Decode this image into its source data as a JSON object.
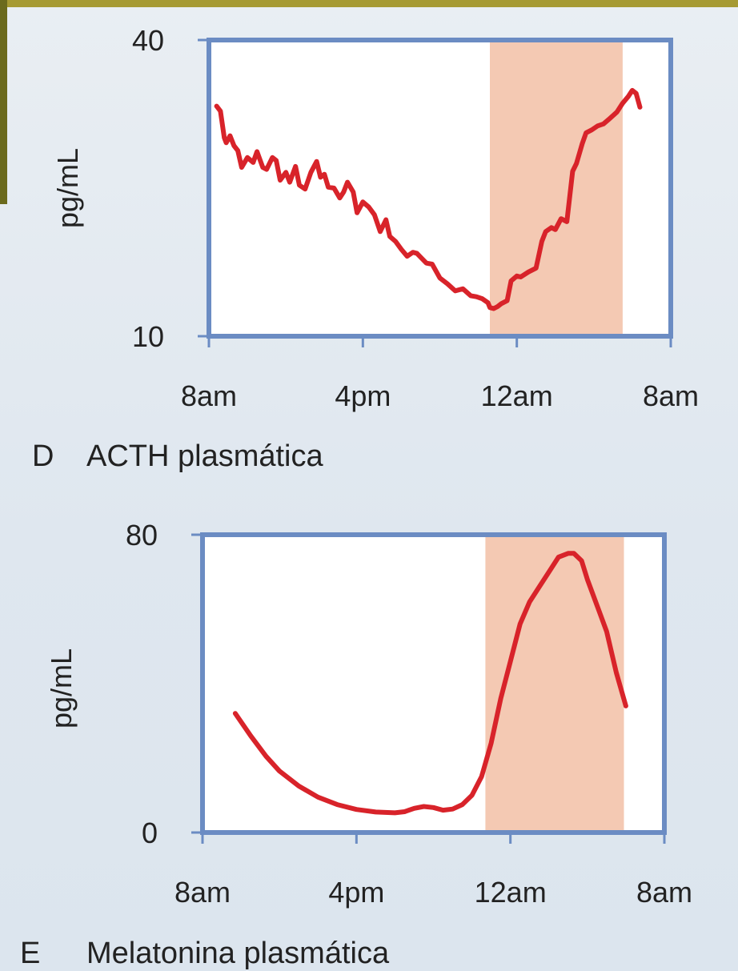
{
  "colors": {
    "frame": "#6b8cc3",
    "line": "#d8232a",
    "night_shade": "#f4c9b3",
    "plot_bg": "#ffffff",
    "top_strip": "#a69a33",
    "corner_block": "#6b6a1d"
  },
  "chart_data": [
    {
      "type": "line",
      "panel_letter": "D",
      "title": "ACTH plasmática",
      "xlabel": "",
      "ylabel": "pg/mL",
      "xlim": [
        0,
        24
      ],
      "ylim": [
        10,
        40
      ],
      "x_ticks": [
        0,
        8,
        16,
        24
      ],
      "x_tick_labels": [
        "8am",
        "4pm",
        "12am",
        "8am"
      ],
      "y_ticks": [
        10,
        40
      ],
      "y_tick_labels": [
        "10",
        "40"
      ],
      "shaded_region": [
        14.6,
        21.5
      ],
      "grid": false,
      "series": [
        {
          "x": [
            0.4,
            0.6,
            0.8,
            0.9,
            1.1,
            1.3,
            1.5,
            1.7,
            2.0,
            2.3,
            2.5,
            2.8,
            3.0,
            3.3,
            3.5,
            3.7,
            4.0,
            4.2,
            4.5,
            4.7,
            5.0,
            5.3,
            5.6,
            5.8,
            6.0,
            6.2,
            6.5,
            6.8,
            7.0,
            7.2,
            7.5,
            7.7,
            8.0,
            8.3,
            8.6,
            8.9,
            9.2,
            9.4,
            9.7,
            10.0,
            10.3,
            10.6,
            10.8,
            11.0,
            11.3,
            11.6,
            12.0,
            12.4,
            12.8,
            13.2,
            13.6,
            13.9,
            14.2,
            14.5,
            14.6,
            14.8,
            15.0,
            15.2,
            15.5,
            15.7,
            16.0,
            16.2,
            16.6,
            17.0,
            17.3,
            17.5,
            17.8,
            18.0,
            18.3,
            18.6,
            18.9,
            19.1,
            19.4,
            19.6,
            19.9,
            20.2,
            20.5,
            20.8,
            21.2,
            21.5,
            21.8,
            22.0,
            22.2,
            22.4
          ],
          "y": [
            33.3,
            32.8,
            30.1,
            29.6,
            30.3,
            29.3,
            28.8,
            27.1,
            28.1,
            27.6,
            28.7,
            27.1,
            26.9,
            28.1,
            27.8,
            25.8,
            26.6,
            25.6,
            27.2,
            25.3,
            24.9,
            26.6,
            27.7,
            26.1,
            26.4,
            25.1,
            25.0,
            24.0,
            24.6,
            25.6,
            24.6,
            22.5,
            23.6,
            23.1,
            22.3,
            20.6,
            21.8,
            20.1,
            19.6,
            18.8,
            18.1,
            18.5,
            18.4,
            18.0,
            17.4,
            17.3,
            15.9,
            15.3,
            14.6,
            14.8,
            14.1,
            14.0,
            13.8,
            13.4,
            12.9,
            12.8,
            13.0,
            13.3,
            13.6,
            15.6,
            16.1,
            16.0,
            16.5,
            16.9,
            19.6,
            20.6,
            21.0,
            20.8,
            21.9,
            21.6,
            26.7,
            27.5,
            29.5,
            30.6,
            30.9,
            31.3,
            31.5,
            32.0,
            32.7,
            33.6,
            34.3,
            34.9,
            34.6,
            33.2
          ]
        }
      ]
    },
    {
      "type": "line",
      "panel_letter": "E",
      "title": "Melatonina plasmática",
      "xlabel": "",
      "ylabel": "pg/mL",
      "xlim": [
        0,
        24
      ],
      "ylim": [
        0,
        80
      ],
      "x_ticks": [
        0,
        8,
        16,
        24
      ],
      "x_tick_labels": [
        "8am",
        "4pm",
        "12am",
        "8am"
      ],
      "y_ticks": [
        0,
        80
      ],
      "y_tick_labels": [
        "0",
        "80"
      ],
      "shaded_region": [
        14.7,
        21.9
      ],
      "grid": false,
      "series": [
        {
          "x": [
            1.7,
            2.5,
            3.3,
            4.0,
            5.0,
            6.0,
            7.0,
            8.0,
            9.0,
            10.0,
            10.5,
            11.0,
            11.5,
            12.0,
            12.5,
            13.0,
            13.5,
            14.0,
            14.5,
            15.0,
            15.5,
            16.0,
            16.5,
            17.0,
            17.5,
            18.0,
            18.5,
            19.0,
            19.3,
            19.7,
            20.0,
            20.5,
            21.0,
            21.5,
            22.0
          ],
          "y": [
            32,
            26,
            20.5,
            16.5,
            12.5,
            9.5,
            7.5,
            6.2,
            5.5,
            5.3,
            5.6,
            6.5,
            7,
            6.7,
            6,
            6.3,
            7.5,
            10,
            15,
            24,
            36,
            46,
            56,
            62,
            66,
            70,
            74,
            75,
            75,
            73,
            68,
            61,
            54,
            43,
            34
          ]
        }
      ]
    }
  ]
}
